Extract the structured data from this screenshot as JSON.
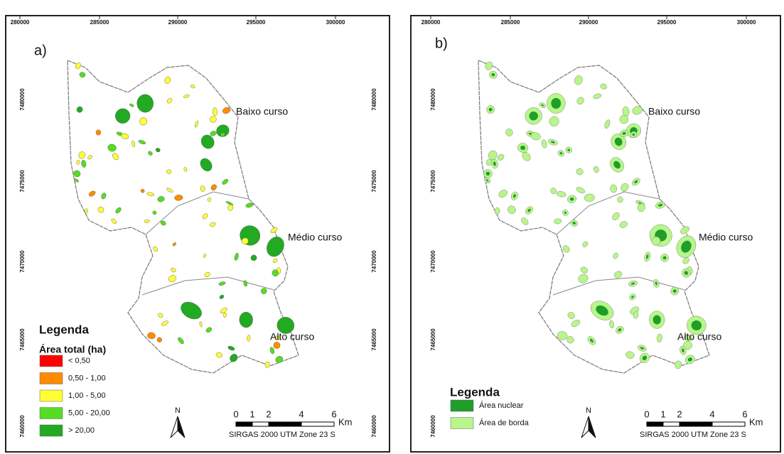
{
  "panels": [
    {
      "label": "a)",
      "x_ticks": [
        "280000",
        "285000",
        "290000",
        "295000",
        "300000"
      ],
      "y_ticks": [
        "7480000",
        "7475000",
        "7470000",
        "7465000",
        "7460000"
      ],
      "regions": [
        "Baixo curso",
        "Médio curso",
        "Alto curso"
      ],
      "legend": {
        "title": "Legenda",
        "subtitle": "Área total (ha)",
        "items": [
          {
            "label": "< 0,50",
            "color": "#ff0000"
          },
          {
            "label": "0,50 - 1,00",
            "color": "#ff8c00"
          },
          {
            "label": "1,00 - 5,00",
            "color": "#ffff33"
          },
          {
            "label": "5,00 - 20,00",
            "color": "#55dd22"
          },
          {
            "label": "> 20,00",
            "color": "#22aa22"
          }
        ]
      },
      "north": "N",
      "scale": {
        "ticks": [
          0,
          1,
          2,
          4,
          6
        ],
        "unit": "Km",
        "crs": "SIRGAS 2000 UTM Zone 23 S"
      }
    },
    {
      "label": "b)",
      "x_ticks": [
        "280000",
        "285000",
        "290000",
        "295000",
        "300000"
      ],
      "y_ticks": [
        "7480000",
        "7475000",
        "7470000",
        "7465000",
        "7460000"
      ],
      "regions": [
        "Baixo curso",
        "Médio curso",
        "Alto curso"
      ],
      "legend": {
        "title": "Legenda",
        "items": [
          {
            "label": "Área nuclear",
            "color": "#1f9e2a"
          },
          {
            "label": "Área de borda",
            "color": "#b8f58a"
          }
        ]
      },
      "north": "N",
      "scale": {
        "ticks": [
          0,
          1,
          2,
          4,
          6
        ],
        "unit": "Km",
        "crs": "SIRGAS 2000 UTM Zone 23 S"
      }
    }
  ]
}
